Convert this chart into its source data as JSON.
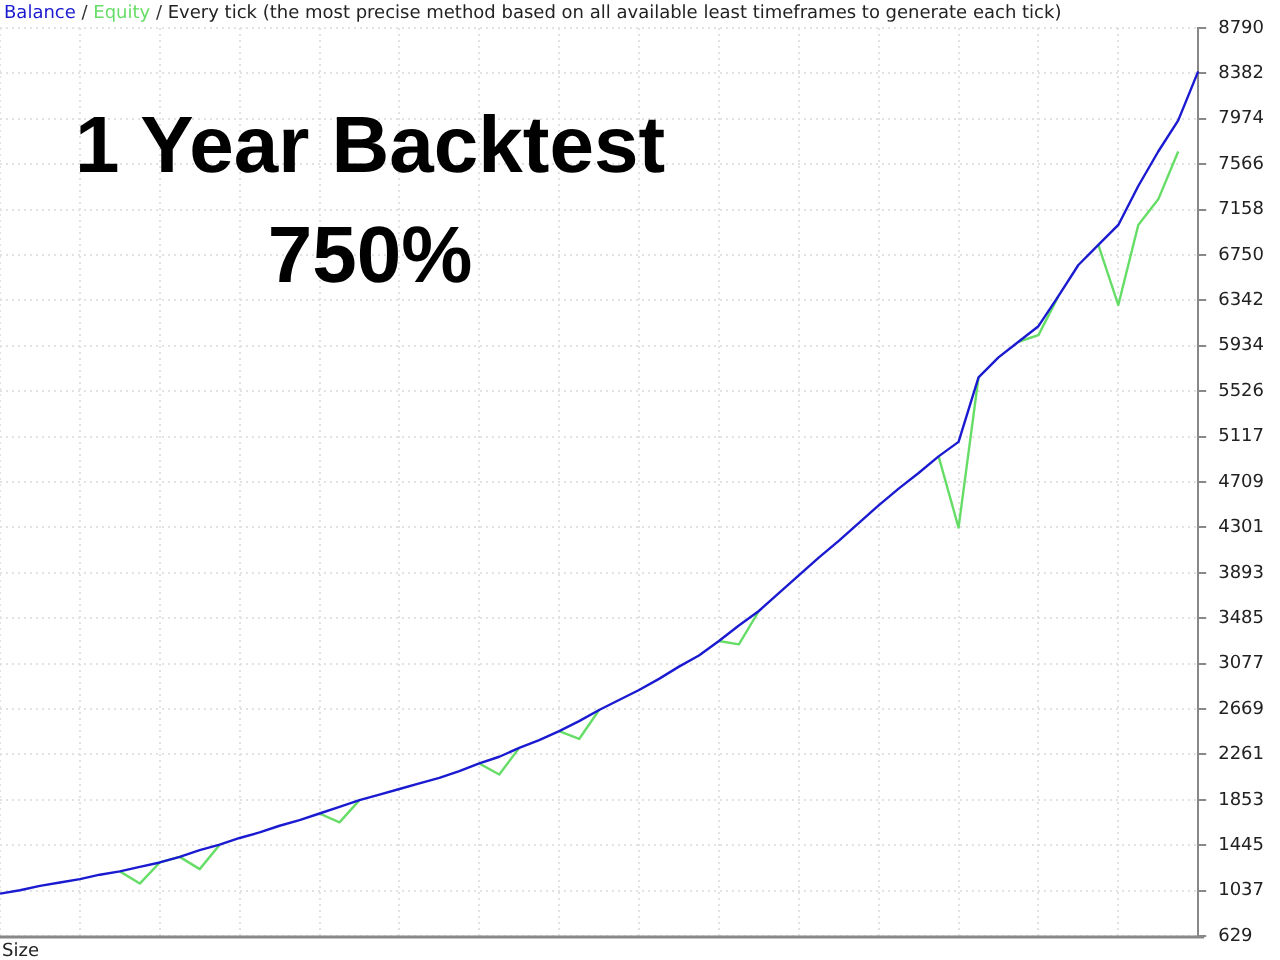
{
  "chart_data": {
    "type": "line",
    "title": "Every tick (the most precise method based on all available least timeframes to generate each tick)",
    "annotations": [
      "1 Year Backtest",
      "750%",
      "Size",
      "/",
      "/"
    ],
    "categories": [
      null,
      null,
      null,
      null,
      null,
      null,
      null,
      null,
      null,
      null,
      null,
      null,
      null,
      null,
      null,
      null,
      null,
      null,
      null,
      null,
      null,
      null,
      null,
      null,
      null,
      null,
      null,
      null,
      null,
      null,
      null,
      null,
      null,
      null,
      null,
      null,
      null,
      null,
      null,
      null,
      null,
      null,
      null,
      null,
      null,
      null,
      null,
      null,
      null,
      null,
      null,
      null,
      null,
      null,
      null,
      null,
      null,
      null,
      null,
      null,
      null
    ],
    "series": [
      {
        "name": "Balance",
        "color": "#1a1ad0",
        "values": [
          1010,
          1040,
          1080,
          1110,
          1140,
          1180,
          1210,
          1250,
          1290,
          1340,
          1400,
          1450,
          1510,
          1560,
          1620,
          1670,
          1730,
          1790,
          1850,
          1900,
          1950,
          2000,
          2050,
          2110,
          2180,
          2240,
          2320,
          2390,
          2470,
          2560,
          2660,
          2750,
          2840,
          2940,
          3050,
          3150,
          3280,
          3420,
          3550,
          3710,
          3870,
          4030,
          4180,
          4340,
          4500,
          4650,
          4790,
          4940,
          5070,
          5650,
          5830,
          5970,
          6110,
          6380,
          6660,
          6840,
          7020,
          7370,
          7680,
          7960,
          8400
        ]
      },
      {
        "name": "Equity",
        "color": "#66dd66",
        "values": [
          null,
          null,
          null,
          null,
          null,
          null,
          1210,
          1100,
          1290,
          1340,
          1230,
          1450,
          null,
          null,
          null,
          null,
          1730,
          1650,
          1850,
          null,
          null,
          null,
          null,
          null,
          2180,
          2080,
          2320,
          null,
          2470,
          2400,
          2660,
          null,
          null,
          null,
          null,
          null,
          3280,
          3250,
          3550,
          null,
          null,
          null,
          null,
          null,
          null,
          null,
          null,
          4940,
          4300,
          5650,
          null,
          5970,
          6030,
          6380,
          null,
          6840,
          6300,
          7020,
          7250,
          7680,
          null
        ]
      }
    ],
    "ylim": [
      629,
      8790
    ],
    "yticks": [
      629,
      1037,
      1445,
      1853,
      2261,
      2669,
      3077,
      3485,
      3893,
      4301,
      4709,
      5117,
      5526,
      5934,
      6342,
      6750,
      7158,
      7566,
      7974,
      8382,
      8790
    ],
    "grid": true,
    "tick_labels": "y",
    "line_style": "solid",
    "marker": "none"
  }
}
